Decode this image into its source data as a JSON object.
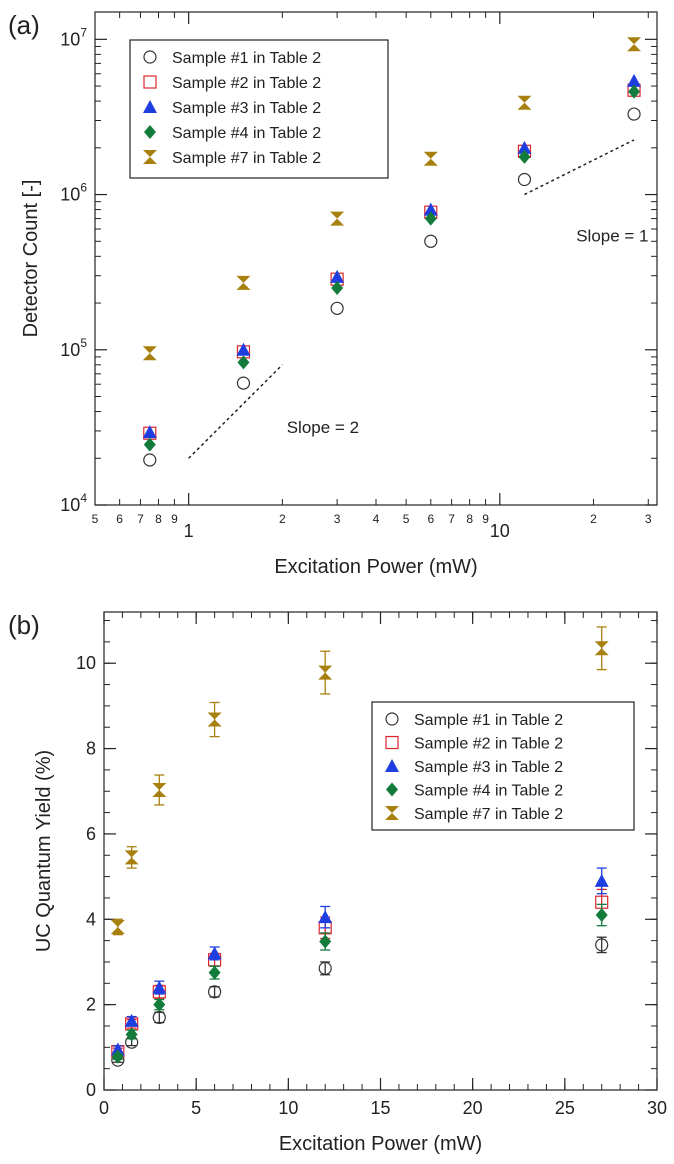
{
  "colors": {
    "s1": "#333333",
    "s2": "#d9262c",
    "s3": "#1f3ee0",
    "s4": "#137c3c",
    "s7": "#a8800f",
    "axis": "#222222"
  },
  "chart_data": [
    {
      "panel_label": "(a)",
      "type": "scatter",
      "xscale": "log",
      "yscale": "log",
      "xlabel": "Excitation Power (mW)",
      "ylabel": "Detector Count [-]",
      "xlim": [
        0.5,
        32
      ],
      "ylim": [
        10000,
        15000000
      ],
      "x_major_ticks": [
        1,
        10
      ],
      "x_major_labels": [
        "1",
        "10"
      ],
      "x_minor_ticks": [
        0.5,
        0.6,
        0.7,
        0.8,
        0.9,
        2,
        3,
        4,
        5,
        6,
        7,
        8,
        9,
        20,
        30
      ],
      "x_minor_labels": [
        "5",
        "6",
        "7",
        "8",
        "9",
        "2",
        "3",
        "4",
        "5",
        "6",
        "7",
        "8",
        "9",
        "2",
        "3"
      ],
      "y_major_ticks": [
        10000,
        100000,
        1000000,
        10000000
      ],
      "y_major_labels": [
        {
          "base": "10",
          "exp": "4"
        },
        {
          "base": "10",
          "exp": "5"
        },
        {
          "base": "10",
          "exp": "6"
        },
        {
          "base": "10",
          "exp": "7"
        }
      ],
      "legend": "top-left",
      "x": [
        0.75,
        1.5,
        3,
        6,
        12,
        27
      ],
      "series": [
        {
          "name": "Sample #1 in Table 2",
          "marker": "circle-open",
          "color": "#333333",
          "values": [
            19500,
            61000,
            185000,
            500000,
            1250000,
            3300000
          ]
        },
        {
          "name": "Sample #2 in Table 2",
          "marker": "square-open",
          "color": "#d9262c",
          "values": [
            29000,
            97000,
            285000,
            770000,
            1900000,
            4700000
          ]
        },
        {
          "name": "Sample #3 in Table 2",
          "marker": "triangle",
          "color": "#1f3ee0",
          "values": [
            29500,
            100000,
            295000,
            800000,
            2000000,
            5400000
          ]
        },
        {
          "name": "Sample #4 in Table 2",
          "marker": "diamond",
          "color": "#137c3c",
          "values": [
            24500,
            83000,
            250000,
            700000,
            1750000,
            4600000
          ]
        },
        {
          "name": "Sample #7 in Table 2",
          "marker": "hourglass",
          "color": "#a8800f",
          "values": [
            95000,
            270000,
            700000,
            1700000,
            3900000,
            9300000
          ]
        }
      ],
      "annotations": [
        {
          "text": "Slope = 2",
          "line_from": [
            1,
            20000
          ],
          "line_to": [
            2,
            80000
          ],
          "label_at": [
            2.7,
            29000
          ]
        },
        {
          "text": "Slope = 1",
          "line_from": [
            12,
            1000000
          ],
          "line_to": [
            27,
            2250000
          ],
          "label_at": [
            23,
            500000
          ]
        }
      ]
    },
    {
      "panel_label": "(b)",
      "type": "scatter",
      "xlabel": "Excitation Power (mW)",
      "ylabel": "UC Quantum Yield (%)",
      "xlim": [
        0,
        30
      ],
      "ylim": [
        0,
        11.2
      ],
      "x_major_ticks": [
        0,
        5,
        10,
        15,
        20,
        25,
        30
      ],
      "x_major_labels": [
        "0",
        "5",
        "10",
        "15",
        "20",
        "25",
        "30"
      ],
      "x_minor_step": 1,
      "y_major_ticks": [
        0,
        2,
        4,
        6,
        8,
        10
      ],
      "y_major_labels": [
        "0",
        "2",
        "4",
        "6",
        "8",
        "10"
      ],
      "y_minor_step": 0.5,
      "legend": "center-right",
      "x": [
        0.75,
        1.5,
        3,
        6,
        12,
        27
      ],
      "series": [
        {
          "name": "Sample #1 in Table 2",
          "marker": "circle-open",
          "color": "#333333",
          "values": [
            0.7,
            1.12,
            1.7,
            2.3,
            2.85,
            3.4
          ],
          "errors": [
            0.05,
            0.08,
            0.12,
            0.12,
            0.15,
            0.18
          ]
        },
        {
          "name": "Sample #2 in Table 2",
          "marker": "square-open",
          "color": "#d9262c",
          "values": [
            0.9,
            1.55,
            2.3,
            3.05,
            3.8,
            4.4
          ],
          "errors": [
            0.08,
            0.1,
            0.15,
            0.15,
            0.25,
            0.3
          ]
        },
        {
          "name": "Sample #3 in Table 2",
          "marker": "triangle",
          "color": "#1f3ee0",
          "values": [
            0.95,
            1.62,
            2.4,
            3.2,
            4.05,
            4.9
          ],
          "errors": [
            0.08,
            0.1,
            0.15,
            0.15,
            0.25,
            0.3
          ]
        },
        {
          "name": "Sample #4 in Table 2",
          "marker": "diamond",
          "color": "#137c3c",
          "values": [
            0.78,
            1.3,
            2.0,
            2.75,
            3.48,
            4.1
          ],
          "errors": [
            0.06,
            0.1,
            0.12,
            0.15,
            0.2,
            0.25
          ]
        },
        {
          "name": "Sample #7 in Table 2",
          "marker": "hourglass",
          "color": "#a8800f",
          "values": [
            3.82,
            5.45,
            7.03,
            8.68,
            9.78,
            10.35
          ],
          "errors": [
            0.18,
            0.25,
            0.35,
            0.4,
            0.5,
            0.5
          ]
        }
      ]
    }
  ]
}
